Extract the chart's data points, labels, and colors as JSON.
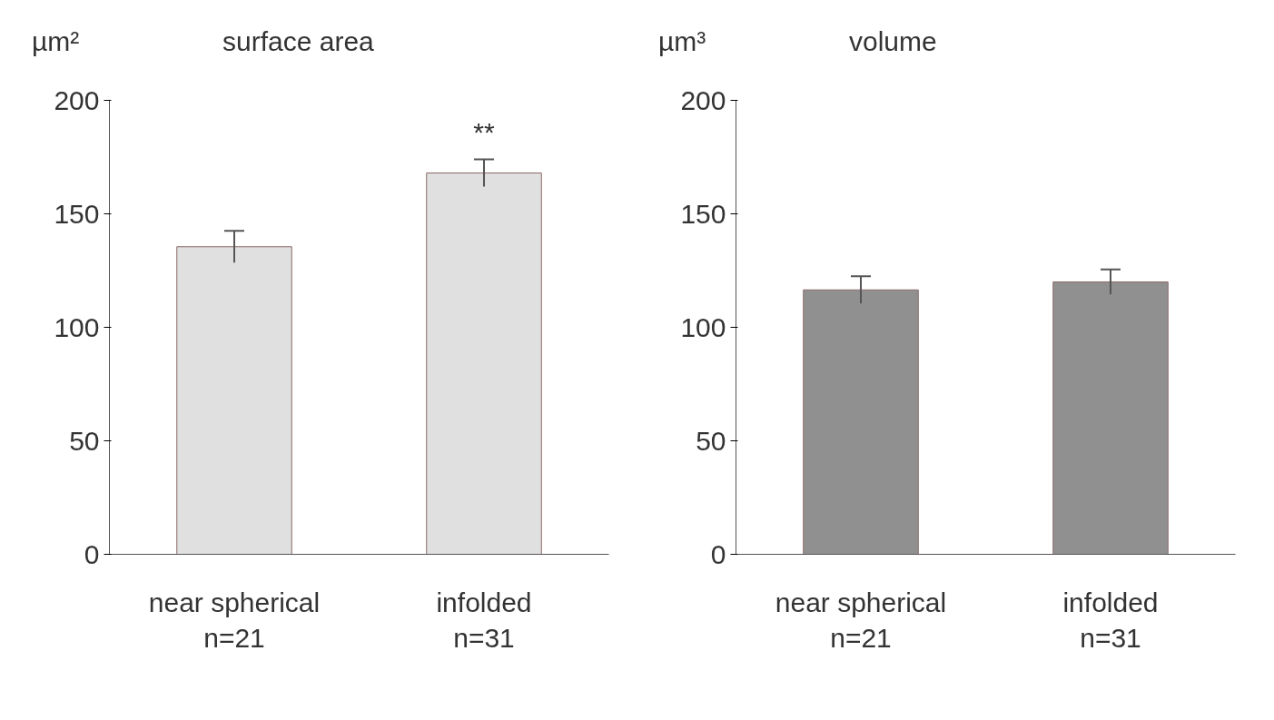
{
  "chart_data": [
    {
      "type": "bar",
      "title": "surface area",
      "ylabel": "µm²",
      "categories": [
        "near spherical\nn=21",
        "infolded\nn=31"
      ],
      "values": [
        135.5,
        168
      ],
      "errors": [
        7,
        6
      ],
      "color": "#e0e0e0",
      "ylim": [
        0,
        200
      ],
      "yticks": [
        0,
        50,
        100,
        150,
        200
      ],
      "annotations": [
        "**"
      ]
    },
    {
      "type": "bar",
      "title": "volume",
      "ylabel": "µm³",
      "categories": [
        "near spherical\nn=21",
        "infolded\nn=31"
      ],
      "values": [
        116.5,
        120
      ],
      "errors": [
        6,
        5.5
      ],
      "color": "#909090",
      "ylim": [
        0,
        200
      ],
      "yticks": [
        0,
        50,
        100,
        150,
        200
      ]
    }
  ]
}
